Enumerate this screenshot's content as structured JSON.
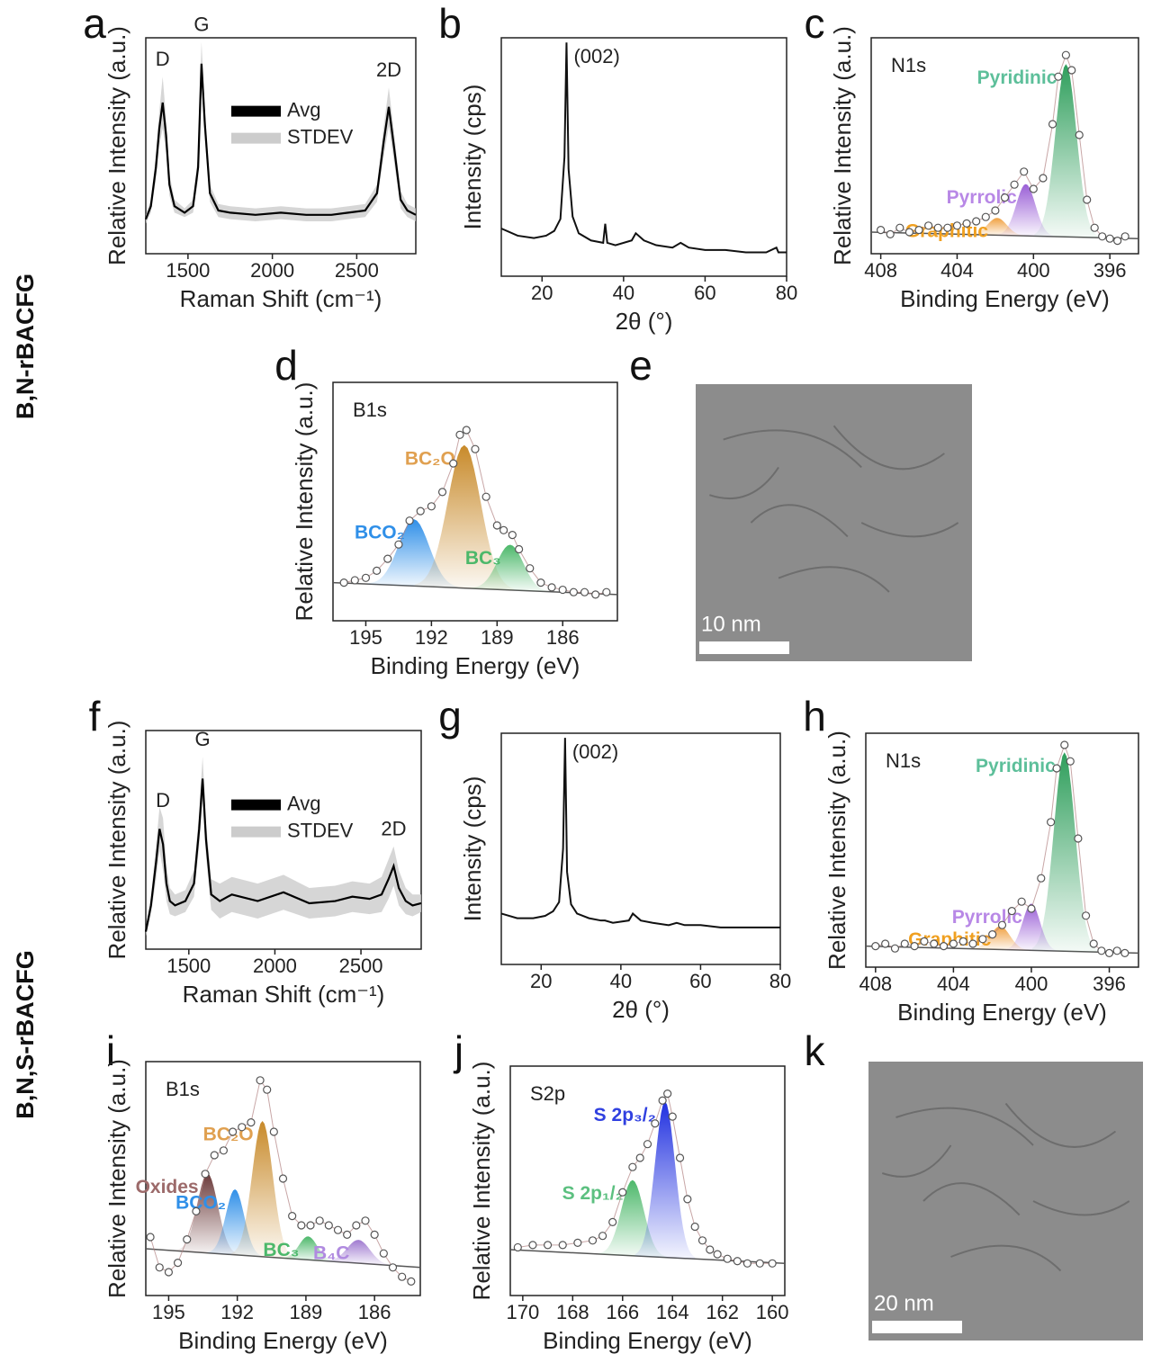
{
  "row_labels": [
    "B,N-rBACFG",
    "B,N,S-rBACFG"
  ],
  "chart_data": [
    {
      "panel": "a",
      "type": "raman",
      "xlabel": "Raman Shift (cm⁻¹)",
      "ylabel": "Relative Intensity (a.u.)",
      "xlim": [
        1250,
        2850
      ],
      "xticks": [
        1500,
        2000,
        2500
      ],
      "ylim": [
        0,
        100
      ],
      "x": [
        1250,
        1280,
        1310,
        1330,
        1350,
        1370,
        1390,
        1420,
        1480,
        1530,
        1560,
        1580,
        1600,
        1630,
        1680,
        1750,
        1900,
        2050,
        2200,
        2350,
        2450,
        2550,
        2620,
        2660,
        2690,
        2720,
        2760,
        2800,
        2850
      ],
      "series": [
        {
          "name": "Avg",
          "color": "#000000",
          "values": [
            16,
            22,
            40,
            58,
            70,
            55,
            32,
            22,
            19,
            22,
            40,
            88,
            60,
            28,
            20,
            19,
            18,
            19,
            18,
            18,
            19,
            20,
            28,
            52,
            68,
            50,
            25,
            20,
            18
          ]
        },
        {
          "name": "STDEV",
          "color": "#cccccc",
          "values": [
            2,
            3,
            6,
            8,
            12,
            8,
            5,
            3,
            2,
            3,
            6,
            10,
            7,
            4,
            3,
            3,
            3,
            3,
            3,
            3,
            3,
            3,
            4,
            7,
            9,
            7,
            4,
            3,
            3
          ]
        }
      ],
      "annotations": [
        {
          "text": "D",
          "x": 1350
        },
        {
          "text": "G",
          "x": 1580
        },
        {
          "text": "2D",
          "x": 2690
        }
      ]
    },
    {
      "panel": "b",
      "type": "xrd",
      "xlabel": "2θ (°)",
      "ylabel": "Intensity (cps)",
      "xlim": [
        10,
        80
      ],
      "xticks": [
        20,
        40,
        60,
        80
      ],
      "ylim": [
        0,
        100
      ],
      "x": [
        10,
        14,
        18,
        21,
        23,
        24.5,
        25.5,
        26,
        26.5,
        27.5,
        29,
        32,
        35,
        35.5,
        36,
        38,
        42,
        43,
        45,
        48,
        52,
        54,
        56,
        60,
        65,
        70,
        75,
        77.5,
        78,
        80
      ],
      "values": [
        20,
        17,
        16,
        17,
        19,
        24,
        50,
        98,
        45,
        25,
        18,
        15,
        14,
        22,
        14,
        13,
        15,
        18,
        15,
        13,
        12,
        14,
        12,
        11,
        11,
        10,
        10,
        12,
        10,
        10
      ],
      "color": "#111111",
      "annotations": [
        {
          "text": "(002)",
          "x": 26
        }
      ]
    },
    {
      "panel": "c",
      "type": "xps",
      "inset_label": "N1s",
      "xlabel": "Binding Energy (eV)",
      "ylabel": "Relative Intensity (a.u.)",
      "xlim": [
        408.5,
        394.5
      ],
      "xticks": [
        408,
        404,
        400,
        396
      ],
      "ylim": [
        0,
        100
      ],
      "x": [
        408,
        407.5,
        407,
        406.5,
        406,
        405.5,
        405,
        404.5,
        404,
        403.5,
        403,
        402.5,
        402,
        401.5,
        401,
        400.5,
        400,
        399.5,
        399,
        398.7,
        398.3,
        398,
        397.6,
        397.2,
        396.8,
        396.4,
        396,
        395.6,
        395.2
      ],
      "values": [
        11,
        9,
        12,
        10,
        11,
        13,
        12,
        12,
        13,
        14,
        15,
        17,
        20,
        26,
        32,
        38,
        30,
        35,
        60,
        82,
        92,
        85,
        55,
        25,
        12,
        8,
        7,
        6,
        8
      ],
      "baseline": [
        10,
        7
      ],
      "components": [
        {
          "name": "Pyridinic",
          "color": "#2e9e5b",
          "label_color": "#5dbf9a",
          "center": 398.3,
          "height": 80,
          "width": 0.55
        },
        {
          "name": "Pyrrolic",
          "color": "#9a5fd6",
          "label_color": "#b888e6",
          "center": 400.4,
          "height": 24,
          "width": 0.5
        },
        {
          "name": "Graphitic",
          "color": "#f0a040",
          "label_color": "#f0a020",
          "center": 401.9,
          "height": 8,
          "width": 0.5
        }
      ]
    },
    {
      "panel": "d",
      "type": "xps",
      "inset_label": "B1s",
      "xlabel": "Binding Energy (eV)",
      "ylabel": "Relative Intensity (a.u.)",
      "xlim": [
        196.5,
        183.5
      ],
      "xticks": [
        195,
        192,
        189,
        186
      ],
      "ylim": [
        0,
        100
      ],
      "x": [
        196,
        195.5,
        195,
        194.5,
        194,
        193.5,
        193,
        192.5,
        192,
        191.5,
        191,
        190.7,
        190.4,
        190,
        189.5,
        189,
        188.7,
        188.3,
        188,
        187.5,
        187,
        186.5,
        186,
        185.5,
        185,
        184.5,
        184
      ],
      "values": [
        16,
        17,
        18,
        21,
        26,
        32,
        42,
        46,
        48,
        54,
        66,
        78,
        80,
        72,
        52,
        40,
        38,
        36,
        30,
        22,
        16,
        14,
        13,
        12,
        12,
        11,
        12
      ],
      "baseline": [
        16,
        11
      ],
      "components": [
        {
          "name": "BCO₂",
          "color": "#2f8fe8",
          "label_color": "#2f8fe8",
          "center": 192.8,
          "height": 28,
          "width": 0.7
        },
        {
          "name": "BC₂O",
          "color": "#c88a2a",
          "label_color": "#e0a050",
          "center": 190.5,
          "height": 60,
          "width": 0.75
        },
        {
          "name": "BC₃",
          "color": "#4cb86a",
          "label_color": "#4cb86a",
          "center": 188.4,
          "height": 19,
          "width": 0.6
        }
      ]
    },
    {
      "panel": "e",
      "type": "image",
      "scale_bar": "10 nm"
    },
    {
      "panel": "f",
      "type": "raman",
      "xlabel": "Raman Shift (cm⁻¹)",
      "ylabel": "Relative Intensity (a.u.)",
      "xlim": [
        1250,
        2850
      ],
      "xticks": [
        1500,
        2000,
        2500
      ],
      "ylim": [
        0,
        100
      ],
      "x": [
        1250,
        1280,
        1310,
        1330,
        1350,
        1370,
        1390,
        1420,
        1480,
        1530,
        1560,
        1580,
        1600,
        1630,
        1680,
        1750,
        1900,
        2050,
        2200,
        2350,
        2450,
        2550,
        2620,
        2660,
        2690,
        2720,
        2760,
        2800,
        2850
      ],
      "series": [
        {
          "name": "Avg",
          "color": "#000000",
          "values": [
            8,
            20,
            40,
            55,
            48,
            30,
            22,
            20,
            22,
            30,
            55,
            78,
            50,
            25,
            22,
            25,
            22,
            26,
            21,
            22,
            24,
            23,
            25,
            32,
            38,
            28,
            22,
            20,
            21
          ]
        },
        {
          "name": "STDEV",
          "color": "#cccccc",
          "values": [
            2,
            4,
            8,
            10,
            12,
            8,
            6,
            5,
            5,
            6,
            8,
            10,
            8,
            7,
            8,
            8,
            8,
            8,
            7,
            7,
            7,
            7,
            8,
            9,
            9,
            8,
            6,
            5,
            4
          ]
        }
      ],
      "annotations": [
        {
          "text": "D",
          "x": 1350
        },
        {
          "text": "G",
          "x": 1580
        },
        {
          "text": "2D",
          "x": 2690
        }
      ]
    },
    {
      "panel": "g",
      "type": "xrd",
      "xlabel": "2θ (°)",
      "ylabel": "Intensity (cps)",
      "xlim": [
        10,
        80
      ],
      "xticks": [
        20,
        40,
        60,
        80
      ],
      "ylim": [
        0,
        100
      ],
      "x": [
        10,
        14,
        18,
        21,
        23,
        24.5,
        25.5,
        26,
        26.5,
        27.5,
        29,
        32,
        35,
        35.5,
        36,
        38,
        42,
        43,
        45,
        48,
        52,
        54,
        56,
        60,
        65,
        70,
        75,
        77.5,
        78,
        80
      ],
      "values": [
        22,
        20,
        20,
        21,
        23,
        27,
        50,
        98,
        40,
        26,
        22,
        20,
        19,
        19,
        19,
        18,
        19,
        22,
        19,
        18,
        17,
        18,
        17,
        17,
        16,
        16,
        16,
        16,
        16,
        16
      ],
      "color": "#111111",
      "annotations": [
        {
          "text": "(002)",
          "x": 26
        }
      ]
    },
    {
      "panel": "h",
      "type": "xps",
      "inset_label": "N1s",
      "xlabel": "Binding Energy (eV)",
      "ylabel": "Relative Intensity (a.u.)",
      "xlim": [
        408.5,
        394.5
      ],
      "xticks": [
        408,
        404,
        400,
        396
      ],
      "ylim": [
        0,
        100
      ],
      "x": [
        408,
        407.5,
        407,
        406.5,
        406,
        405.5,
        405,
        404.5,
        404,
        403.5,
        403,
        402.5,
        402,
        401.5,
        401,
        400.5,
        400,
        399.5,
        399,
        398.7,
        398.3,
        398,
        397.6,
        397.2,
        396.8,
        396.4,
        396,
        395.6,
        395.2
      ],
      "values": [
        9,
        10,
        8,
        10,
        9,
        11,
        10,
        9,
        10,
        11,
        10,
        12,
        14,
        18,
        24,
        28,
        25,
        38,
        62,
        85,
        95,
        88,
        55,
        22,
        10,
        7,
        6,
        7,
        6
      ],
      "baseline": [
        9,
        6
      ],
      "components": [
        {
          "name": "Pyridinic",
          "color": "#2e9e5b",
          "label_color": "#5dbf9a",
          "center": 398.3,
          "height": 85,
          "width": 0.55
        },
        {
          "name": "Pyrrolic",
          "color": "#9a5fd6",
          "label_color": "#b888e6",
          "center": 400.0,
          "height": 20,
          "width": 0.45
        },
        {
          "name": "Graphitic",
          "color": "#f0a040",
          "label_color": "#f0a020",
          "center": 401.6,
          "height": 10,
          "width": 0.5
        }
      ]
    },
    {
      "panel": "i",
      "type": "xps",
      "inset_label": "B1s",
      "xlabel": "Binding Energy (eV)",
      "ylabel": "Relative Intensity (a.u.)",
      "xlim": [
        196,
        184
      ],
      "xticks": [
        195,
        192,
        189,
        186
      ],
      "ylim": [
        0,
        100
      ],
      "x": [
        195.8,
        195.4,
        195,
        194.6,
        194.2,
        193.8,
        193.4,
        193,
        192.6,
        192.2,
        191.8,
        191.4,
        191,
        190.7,
        190.4,
        190,
        189.6,
        189.2,
        188.8,
        188.4,
        188,
        187.6,
        187.2,
        186.8,
        186.4,
        186,
        185.6,
        185.2,
        184.8,
        184.4
      ],
      "values": [
        25,
        12,
        10,
        14,
        24,
        36,
        52,
        60,
        62,
        70,
        72,
        74,
        92,
        88,
        70,
        50,
        34,
        30,
        30,
        32,
        30,
        28,
        26,
        30,
        32,
        26,
        18,
        12,
        8,
        6
      ],
      "baseline": [
        20,
        12
      ],
      "components": [
        {
          "name": "Oxides",
          "color": "#6b3a3a",
          "label_color": "#9c6a6a",
          "center": 193.3,
          "height": 34,
          "width": 0.45
        },
        {
          "name": "BCO₂",
          "color": "#2f8fe8",
          "label_color": "#2f8fe8",
          "center": 192.1,
          "height": 28,
          "width": 0.4
        },
        {
          "name": "BC₂O",
          "color": "#c88a2a",
          "label_color": "#e0a050",
          "center": 190.9,
          "height": 58,
          "width": 0.45
        },
        {
          "name": "BC₃",
          "color": "#4cb86a",
          "label_color": "#4cb86a",
          "center": 188.9,
          "height": 10,
          "width": 0.4
        },
        {
          "name": "B₄C",
          "color": "#a07ad0",
          "label_color": "#b08ae0",
          "center": 186.7,
          "height": 10,
          "width": 0.5
        }
      ]
    },
    {
      "panel": "j",
      "type": "xps",
      "inset_label": "S2p",
      "xlabel": "Binding Energy (eV)",
      "ylabel": "Relative Intensity (a.u.)",
      "xlim": [
        170.5,
        159.5
      ],
      "xticks": [
        170,
        168,
        166,
        164,
        162,
        160
      ],
      "ylim": [
        0,
        100
      ],
      "x": [
        170.2,
        169.6,
        169,
        168.4,
        167.8,
        167.2,
        166.8,
        166.4,
        166,
        165.6,
        165.3,
        165,
        164.7,
        164.4,
        164.2,
        164,
        163.7,
        163.4,
        163.1,
        162.8,
        162.5,
        162.2,
        161.8,
        161.4,
        161,
        160.5,
        160
      ],
      "values": [
        21,
        22,
        22,
        22,
        23,
        24,
        26,
        32,
        45,
        56,
        60,
        66,
        75,
        85,
        88,
        78,
        60,
        42,
        30,
        24,
        20,
        18,
        16,
        15,
        14,
        14,
        14
      ],
      "baseline": [
        20,
        14
      ],
      "components": [
        {
          "name": "S 2p₁/₂",
          "color": "#4cb86a",
          "label_color": "#5cc080",
          "center": 165.6,
          "height": 33,
          "width": 0.45
        },
        {
          "name": "S 2p₃/₂",
          "color": "#2030e0",
          "label_color": "#3040e0",
          "center": 164.3,
          "height": 68,
          "width": 0.4
        }
      ]
    },
    {
      "panel": "k",
      "type": "image",
      "scale_bar": "20 nm"
    }
  ]
}
